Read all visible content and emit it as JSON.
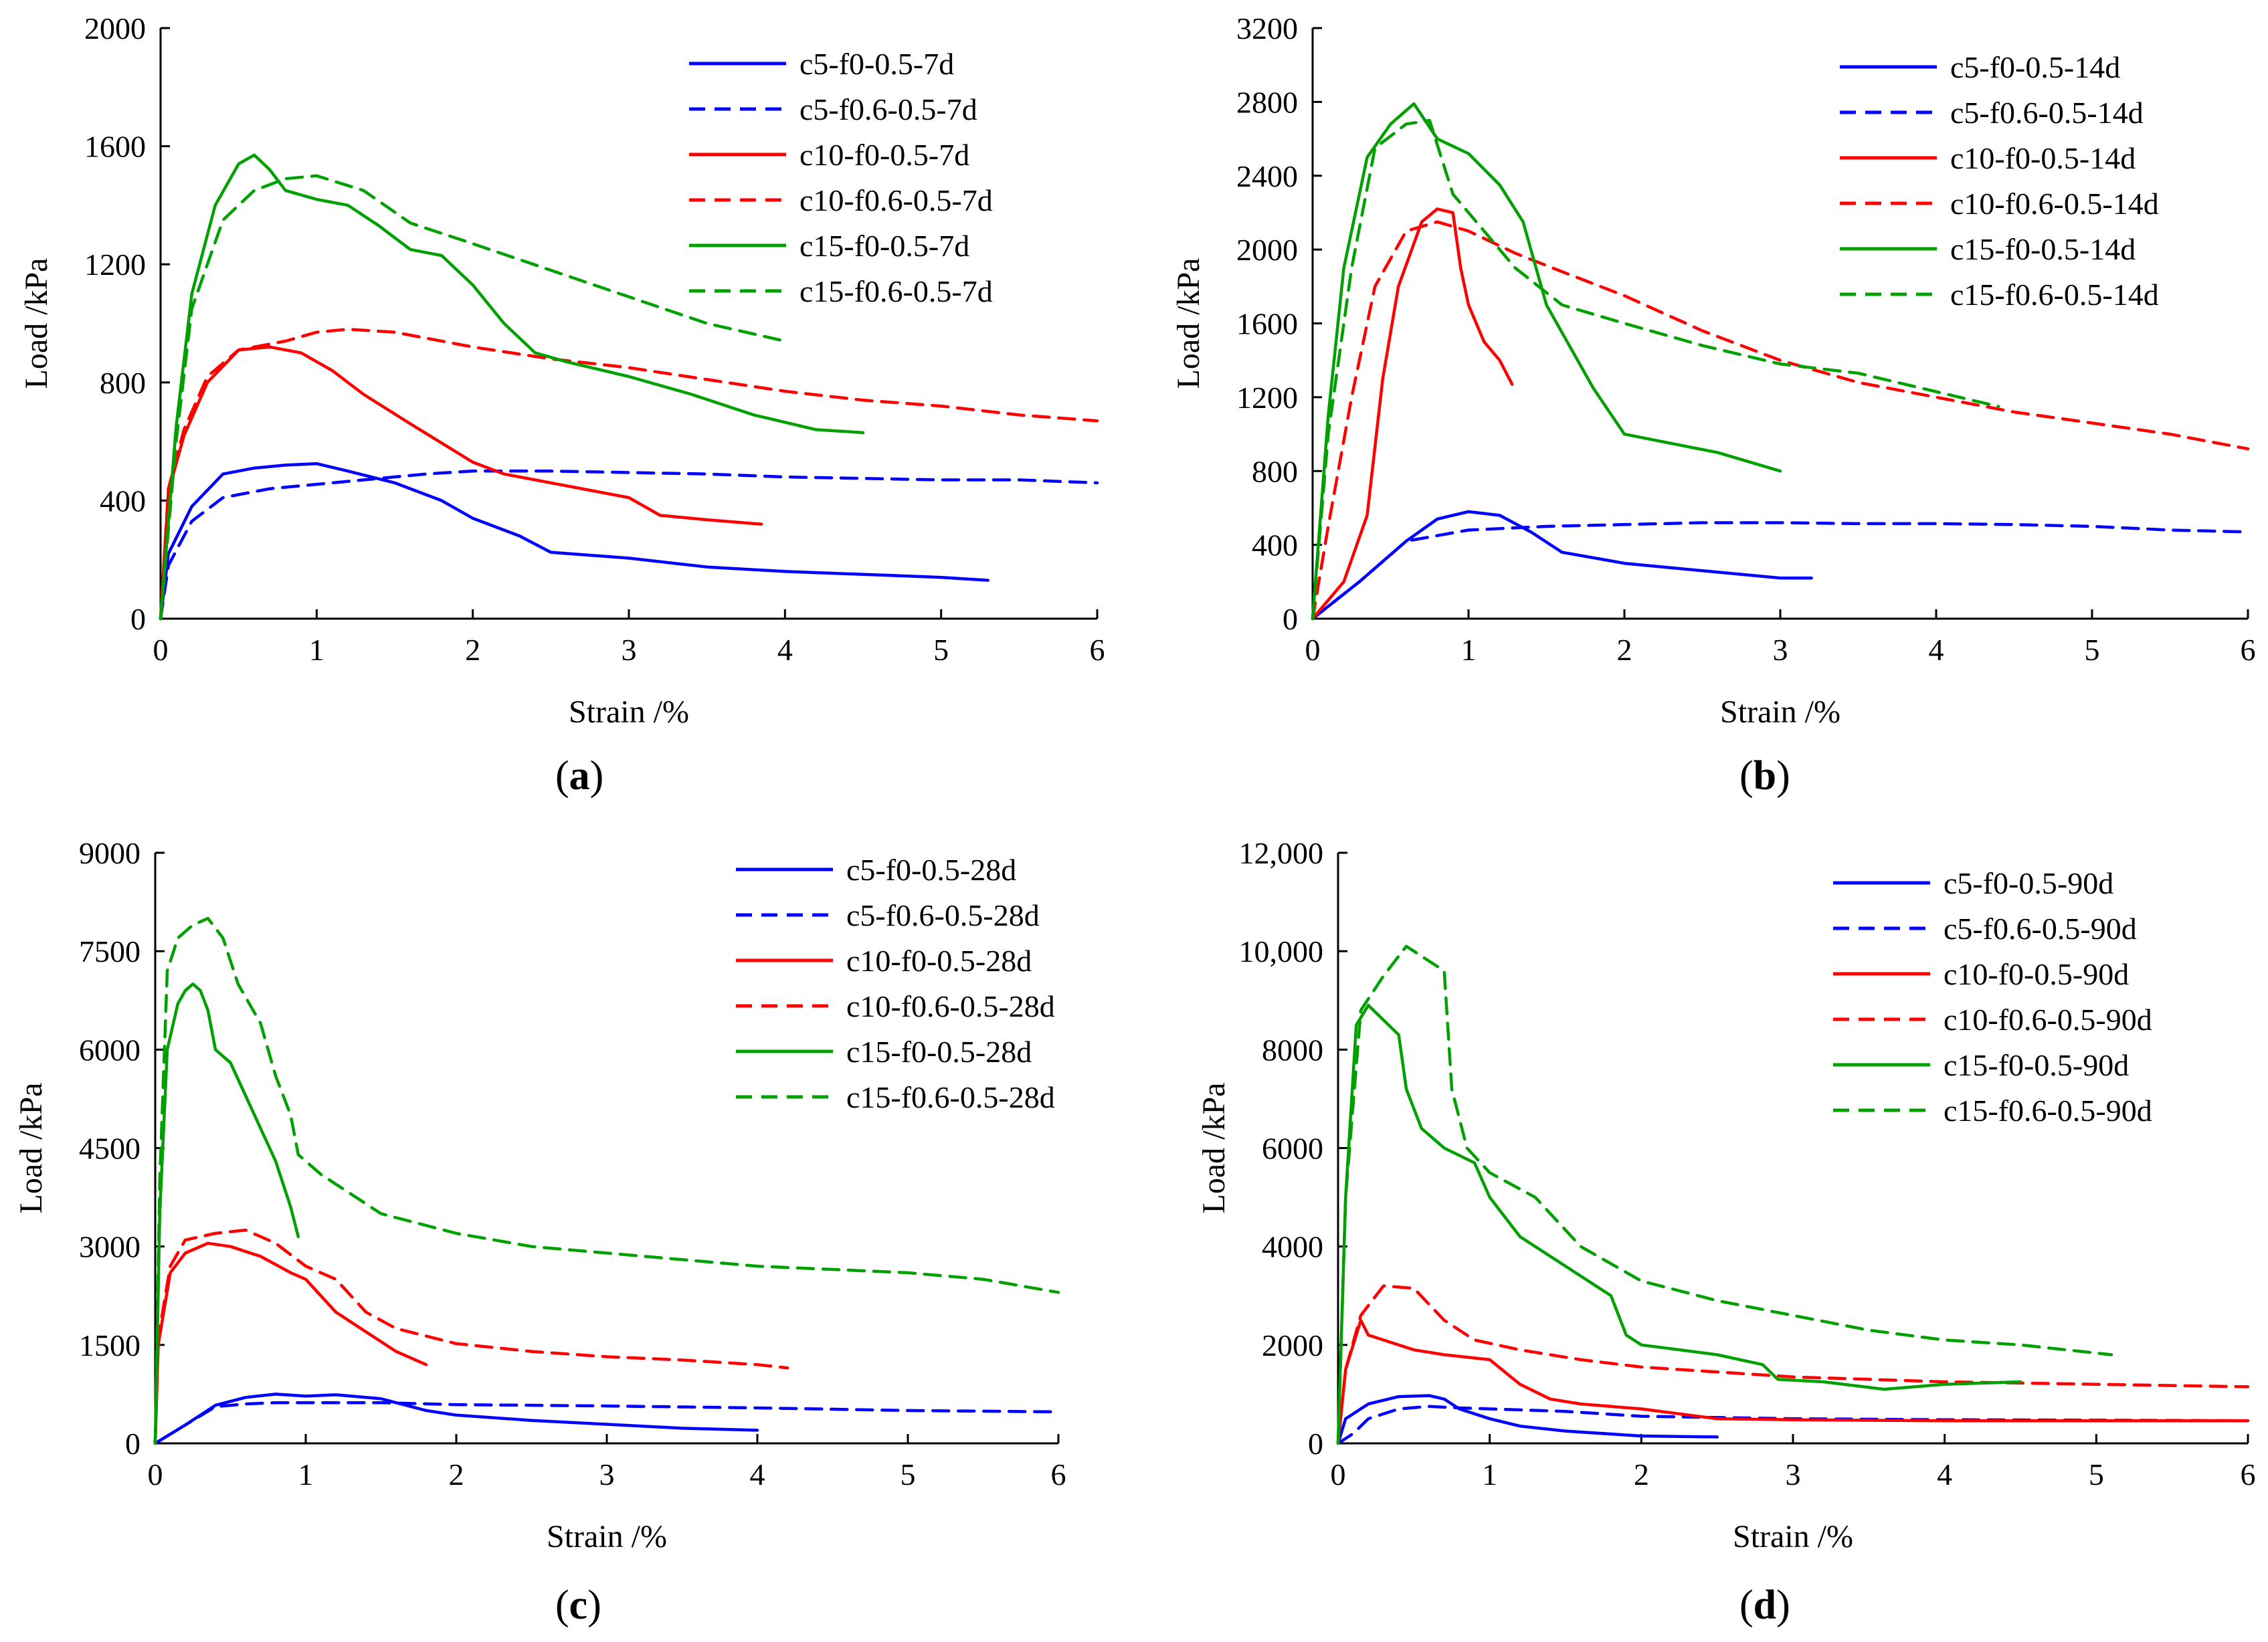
{
  "chart_data": [
    {
      "type": "line",
      "panel_label": "a",
      "xlabel": "Strain /%",
      "ylabel": "Load /kPa",
      "xlim": [
        0,
        6
      ],
      "ylim": [
        0,
        2000
      ],
      "xticks": [
        "0",
        "1",
        "2",
        "3",
        "4",
        "5",
        "6"
      ],
      "yticks": [
        "0",
        "400",
        "800",
        "1200",
        "1600",
        "2000"
      ],
      "legend_position": "top-right",
      "series": [
        {
          "name": "c5-f0-0.5-7d",
          "color": "#0000ff",
          "dash": "solid",
          "x": [
            0,
            0.05,
            0.2,
            0.4,
            0.6,
            0.8,
            1.0,
            1.2,
            1.5,
            1.8,
            2.0,
            2.3,
            2.5,
            3.0,
            3.5,
            4.0,
            4.5,
            5.0,
            5.3
          ],
          "y": [
            0,
            220,
            380,
            490,
            510,
            520,
            525,
            500,
            460,
            400,
            340,
            280,
            225,
            205,
            175,
            160,
            150,
            140,
            130
          ]
        },
        {
          "name": "c5-f0.6-0.5-7d",
          "color": "#0000ff",
          "dash": "dashed",
          "x": [
            0,
            0.05,
            0.2,
            0.4,
            0.7,
            1.0,
            1.3,
            1.7,
            2.0,
            2.5,
            3.0,
            3.5,
            4.0,
            4.5,
            5.0,
            5.5,
            6.0
          ],
          "y": [
            0,
            180,
            330,
            410,
            440,
            455,
            470,
            490,
            500,
            500,
            495,
            490,
            480,
            475,
            470,
            470,
            460
          ]
        },
        {
          "name": "c10-f0-0.5-7d",
          "color": "#ff0000",
          "dash": "solid",
          "x": [
            0,
            0.05,
            0.15,
            0.3,
            0.5,
            0.7,
            0.9,
            1.1,
            1.3,
            1.6,
            2.0,
            2.2,
            2.5,
            2.8,
            3.0,
            3.2,
            3.5,
            3.85
          ],
          "y": [
            0,
            430,
            620,
            800,
            910,
            920,
            900,
            840,
            760,
            660,
            530,
            490,
            460,
            430,
            410,
            350,
            335,
            320
          ]
        },
        {
          "name": "c10-f0.6-0.5-7d",
          "color": "#ff0000",
          "dash": "dashed",
          "x": [
            0,
            0.05,
            0.15,
            0.3,
            0.5,
            0.8,
            1.0,
            1.2,
            1.5,
            2.0,
            2.5,
            3.0,
            3.5,
            4.0,
            4.5,
            5.0,
            5.5,
            6.0
          ],
          "y": [
            0,
            440,
            640,
            820,
            910,
            940,
            970,
            980,
            970,
            920,
            880,
            850,
            810,
            770,
            740,
            720,
            690,
            670
          ]
        },
        {
          "name": "c15-f0-0.5-7d",
          "color": "#00a000",
          "dash": "solid",
          "x": [
            0,
            0.1,
            0.2,
            0.35,
            0.5,
            0.6,
            0.7,
            0.8,
            1.0,
            1.2,
            1.4,
            1.6,
            1.8,
            2.0,
            2.2,
            2.4,
            2.6,
            3.0,
            3.4,
            3.8,
            4.2,
            4.5
          ],
          "y": [
            0,
            650,
            1100,
            1400,
            1540,
            1570,
            1520,
            1450,
            1420,
            1400,
            1330,
            1250,
            1230,
            1130,
            1000,
            900,
            870,
            820,
            760,
            690,
            640,
            630
          ]
        },
        {
          "name": "c15-f0.6-0.5-7d",
          "color": "#00a000",
          "dash": "dashed",
          "x": [
            0,
            0.1,
            0.2,
            0.4,
            0.6,
            0.8,
            1.0,
            1.3,
            1.6,
            2.0,
            2.5,
            3.0,
            3.5,
            4.0
          ],
          "y": [
            0,
            600,
            1050,
            1350,
            1450,
            1490,
            1500,
            1450,
            1340,
            1270,
            1180,
            1090,
            1000,
            940
          ]
        }
      ]
    },
    {
      "type": "line",
      "panel_label": "b",
      "xlabel": "Strain /%",
      "ylabel": "Load /kPa",
      "xlim": [
        0,
        6
      ],
      "ylim": [
        0,
        3200
      ],
      "xticks": [
        "0",
        "1",
        "2",
        "3",
        "4",
        "5",
        "6"
      ],
      "yticks": [
        "0",
        "400",
        "800",
        "1200",
        "1600",
        "2000",
        "2400",
        "2800",
        "3200"
      ],
      "legend_position": "top-right",
      "series": [
        {
          "name": "c5-f0-0.5-14d",
          "color": "#0000ff",
          "dash": "solid",
          "x": [
            0,
            0.3,
            0.6,
            0.8,
            1.0,
            1.2,
            1.4,
            1.6,
            2.0,
            2.5,
            3.0,
            3.2
          ],
          "y": [
            0,
            200,
            420,
            540,
            580,
            560,
            470,
            360,
            300,
            260,
            220,
            220
          ]
        },
        {
          "name": "c5-f0.6-0.5-14d",
          "color": "#0000ff",
          "dash": "dashed",
          "x": [
            0,
            0.3,
            0.6,
            1.0,
            1.5,
            2.0,
            2.5,
            3.0,
            3.5,
            4.0,
            4.5,
            5.0,
            5.5,
            6.0
          ],
          "y": [
            0,
            200,
            420,
            480,
            500,
            510,
            520,
            520,
            515,
            515,
            510,
            500,
            480,
            470
          ]
        },
        {
          "name": "c10-f0-0.5-14d",
          "color": "#ff0000",
          "dash": "solid",
          "x": [
            0,
            0.2,
            0.35,
            0.45,
            0.55,
            0.7,
            0.8,
            0.9,
            0.95,
            1.0,
            1.1,
            1.2,
            1.28
          ],
          "y": [
            0,
            200,
            560,
            1300,
            1800,
            2150,
            2220,
            2200,
            1900,
            1700,
            1500,
            1400,
            1270
          ]
        },
        {
          "name": "c10-f0.6-0.5-14d",
          "color": "#ff0000",
          "dash": "dashed",
          "x": [
            0,
            0.1,
            0.25,
            0.4,
            0.6,
            0.8,
            1.0,
            1.3,
            1.6,
            2.0,
            2.5,
            3.0,
            3.5,
            4.0,
            4.5,
            5.0,
            5.5,
            6.0
          ],
          "y": [
            0,
            500,
            1200,
            1800,
            2100,
            2150,
            2100,
            1980,
            1880,
            1750,
            1560,
            1400,
            1280,
            1200,
            1120,
            1060,
            1000,
            920
          ]
        },
        {
          "name": "c15-f0-0.5-14d",
          "color": "#00a000",
          "dash": "solid",
          "x": [
            0,
            0.1,
            0.2,
            0.35,
            0.5,
            0.65,
            0.8,
            1.0,
            1.2,
            1.35,
            1.5,
            1.8,
            2.0,
            2.3,
            2.6,
            3.0
          ],
          "y": [
            0,
            1100,
            1900,
            2500,
            2680,
            2790,
            2600,
            2520,
            2350,
            2150,
            1700,
            1250,
            1000,
            950,
            900,
            800
          ]
        },
        {
          "name": "c15-f0.6-0.5-14d",
          "color": "#00a000",
          "dash": "dashed",
          "x": [
            0,
            0.1,
            0.25,
            0.4,
            0.6,
            0.75,
            0.9,
            1.1,
            1.3,
            1.6,
            2.0,
            2.5,
            3.0,
            3.5,
            4.0,
            4.4
          ],
          "y": [
            0,
            1000,
            1900,
            2550,
            2680,
            2700,
            2300,
            2100,
            1900,
            1700,
            1600,
            1480,
            1380,
            1330,
            1230,
            1150
          ]
        }
      ]
    },
    {
      "type": "line",
      "panel_label": "c",
      "xlabel": "Strain /%",
      "ylabel": "Load /kPa",
      "xlim": [
        0,
        6
      ],
      "ylim": [
        0,
        9000
      ],
      "xticks": [
        "0",
        "1",
        "2",
        "3",
        "4",
        "5",
        "6"
      ],
      "yticks": [
        "0",
        "1500",
        "3000",
        "4500",
        "6000",
        "7500",
        "9000"
      ],
      "legend_position": "top-right",
      "series": [
        {
          "name": "c5-f0-0.5-28d",
          "color": "#0000ff",
          "dash": "solid",
          "x": [
            0,
            0.2,
            0.4,
            0.6,
            0.8,
            1.0,
            1.2,
            1.5,
            1.8,
            2.0,
            2.5,
            3.0,
            3.5,
            4.0
          ],
          "y": [
            0,
            280,
            580,
            700,
            750,
            720,
            740,
            680,
            500,
            430,
            350,
            290,
            230,
            200
          ]
        },
        {
          "name": "c5-f0.6-0.5-28d",
          "color": "#0000ff",
          "dash": "dashed",
          "x": [
            0,
            0.2,
            0.4,
            0.6,
            0.8,
            1.0,
            1.5,
            2.0,
            3.0,
            4.0,
            5.0,
            6.0
          ],
          "y": [
            0,
            280,
            560,
            600,
            620,
            620,
            620,
            590,
            570,
            540,
            500,
            480
          ]
        },
        {
          "name": "c10-f0-0.5-28d",
          "color": "#ff0000",
          "dash": "solid",
          "x": [
            0,
            0.02,
            0.1,
            0.2,
            0.35,
            0.5,
            0.7,
            0.9,
            1.0,
            1.2,
            1.4,
            1.6,
            1.8
          ],
          "y": [
            0,
            1500,
            2600,
            2900,
            3050,
            3000,
            2850,
            2600,
            2500,
            2000,
            1700,
            1400,
            1200
          ]
        },
        {
          "name": "c10-f0.6-0.5-28d",
          "color": "#ff0000",
          "dash": "dashed",
          "x": [
            0,
            0.02,
            0.1,
            0.2,
            0.4,
            0.6,
            0.8,
            1.0,
            1.2,
            1.4,
            1.6,
            2.0,
            2.5,
            3.0,
            3.5,
            4.0,
            4.2
          ],
          "y": [
            0,
            1600,
            2700,
            3100,
            3200,
            3250,
            3050,
            2700,
            2500,
            2000,
            1750,
            1520,
            1400,
            1320,
            1270,
            1200,
            1150
          ]
        },
        {
          "name": "c15-f0-0.5-28d",
          "color": "#00a000",
          "dash": "solid",
          "x": [
            0,
            0.03,
            0.08,
            0.15,
            0.2,
            0.25,
            0.3,
            0.35,
            0.4,
            0.5,
            0.6,
            0.7,
            0.8,
            0.9,
            0.95
          ],
          "y": [
            0,
            3500,
            6000,
            6700,
            6900,
            7000,
            6900,
            6600,
            6000,
            5800,
            5300,
            4800,
            4300,
            3600,
            3150
          ]
        },
        {
          "name": "c15-f0.6-0.5-28d",
          "color": "#00a000",
          "dash": "dashed",
          "x": [
            0,
            0.03,
            0.08,
            0.15,
            0.25,
            0.35,
            0.45,
            0.55,
            0.7,
            0.8,
            0.9,
            0.95,
            1.1,
            1.5,
            2.0,
            2.5,
            3.0,
            3.5,
            4.0,
            4.5,
            5.0,
            5.5,
            6.0
          ],
          "y": [
            0,
            4000,
            7200,
            7700,
            7900,
            8000,
            7700,
            7000,
            6400,
            5600,
            5000,
            4400,
            4100,
            3500,
            3200,
            3000,
            2900,
            2800,
            2700,
            2650,
            2600,
            2500,
            2300
          ]
        }
      ]
    },
    {
      "type": "line",
      "panel_label": "d",
      "xlabel": "Strain /%",
      "ylabel": "Load /kPa",
      "xlim": [
        0,
        6
      ],
      "ylim": [
        0,
        12000
      ],
      "xticks": [
        "0",
        "1",
        "2",
        "3",
        "4",
        "5",
        "6"
      ],
      "yticks": [
        "0",
        "2000",
        "4000",
        "6000",
        "8000",
        "10,000",
        "12,000"
      ],
      "legend_position": "top-right",
      "series": [
        {
          "name": "c5-f0-0.5-90d",
          "color": "#0000ff",
          "dash": "solid",
          "x": [
            0,
            0.05,
            0.2,
            0.4,
            0.6,
            0.7,
            0.8,
            1.0,
            1.2,
            1.5,
            2.0,
            2.5
          ],
          "y": [
            0,
            500,
            800,
            950,
            970,
            900,
            700,
            500,
            350,
            250,
            150,
            130
          ]
        },
        {
          "name": "c5-f0.6-0.5-90d",
          "color": "#0000ff",
          "dash": "dashed",
          "x": [
            0,
            0.1,
            0.2,
            0.4,
            0.6,
            0.8,
            1.0,
            1.5,
            2.0,
            3.0,
            4.0,
            5.0,
            6.0
          ],
          "y": [
            0,
            200,
            500,
            700,
            750,
            720,
            700,
            650,
            550,
            500,
            480,
            470,
            460
          ]
        },
        {
          "name": "c10-f0-0.5-90d",
          "color": "#ff0000",
          "dash": "solid",
          "x": [
            0,
            0.05,
            0.15,
            0.2,
            0.3,
            0.5,
            0.7,
            1.0,
            1.2,
            1.4,
            1.6,
            2.0,
            2.5,
            3.0,
            4.0,
            5.0,
            6.0
          ],
          "y": [
            0,
            1500,
            2500,
            2200,
            2100,
            1900,
            1800,
            1700,
            1200,
            900,
            800,
            700,
            500,
            480,
            460,
            460,
            460
          ]
        },
        {
          "name": "c10-f0.6-0.5-90d",
          "color": "#ff0000",
          "dash": "dashed",
          "x": [
            0,
            0.05,
            0.15,
            0.3,
            0.5,
            0.7,
            0.9,
            1.2,
            1.6,
            2.0,
            2.5,
            3.0,
            3.5,
            4.0,
            5.0,
            6.0
          ],
          "y": [
            0,
            1500,
            2600,
            3200,
            3150,
            2500,
            2100,
            1900,
            1700,
            1550,
            1450,
            1350,
            1300,
            1250,
            1200,
            1150
          ]
        },
        {
          "name": "c15-f0-0.5-90d",
          "color": "#00a000",
          "dash": "solid",
          "x": [
            0,
            0.05,
            0.12,
            0.2,
            0.3,
            0.4,
            0.45,
            0.55,
            0.7,
            0.9,
            1.0,
            1.2,
            1.5,
            1.8,
            1.9,
            2.0,
            2.5,
            2.8,
            2.9,
            3.2,
            3.6,
            4.0,
            4.5
          ],
          "y": [
            0,
            5000,
            8500,
            8900,
            8600,
            8300,
            7200,
            6400,
            6000,
            5700,
            5000,
            4200,
            3600,
            3000,
            2200,
            2000,
            1800,
            1600,
            1300,
            1250,
            1100,
            1200,
            1250
          ]
        },
        {
          "name": "c15-f0.6-0.5-90d",
          "color": "#00a000",
          "dash": "dashed",
          "x": [
            0,
            0.05,
            0.15,
            0.3,
            0.45,
            0.6,
            0.7,
            0.75,
            0.85,
            1.0,
            1.3,
            1.6,
            2.0,
            2.5,
            3.0,
            3.5,
            4.0,
            4.5,
            5.1
          ],
          "y": [
            0,
            5000,
            8800,
            9500,
            10100,
            9800,
            9600,
            7200,
            6000,
            5500,
            5000,
            4000,
            3300,
            2900,
            2600,
            2300,
            2100,
            2000,
            1800
          ]
        }
      ]
    }
  ]
}
